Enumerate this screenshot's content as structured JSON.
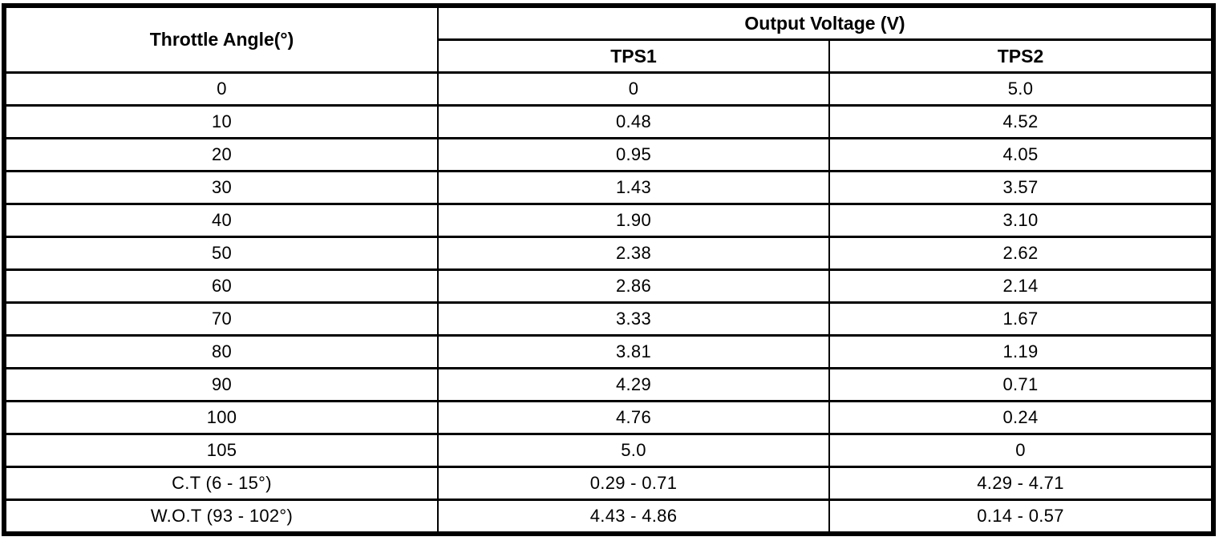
{
  "table": {
    "header": {
      "throttle_angle": "Throttle Angle(°)",
      "output_voltage": "Output Voltage (V)",
      "tps1": "TPS1",
      "tps2": "TPS2"
    },
    "rows": [
      {
        "angle": "0",
        "tps1": "0",
        "tps2": "5.0"
      },
      {
        "angle": "10",
        "tps1": "0.48",
        "tps2": "4.52"
      },
      {
        "angle": "20",
        "tps1": "0.95",
        "tps2": "4.05"
      },
      {
        "angle": "30",
        "tps1": "1.43",
        "tps2": "3.57"
      },
      {
        "angle": "40",
        "tps1": "1.90",
        "tps2": "3.10"
      },
      {
        "angle": "50",
        "tps1": "2.38",
        "tps2": "2.62"
      },
      {
        "angle": "60",
        "tps1": "2.86",
        "tps2": "2.14"
      },
      {
        "angle": "70",
        "tps1": "3.33",
        "tps2": "1.67"
      },
      {
        "angle": "80",
        "tps1": "3.81",
        "tps2": "1.19"
      },
      {
        "angle": "90",
        "tps1": "4.29",
        "tps2": "0.71"
      },
      {
        "angle": "100",
        "tps1": "4.76",
        "tps2": "0.24"
      },
      {
        "angle": "105",
        "tps1": "5.0",
        "tps2": "0"
      },
      {
        "angle": "C.T (6 - 15°)",
        "tps1": "0.29 - 0.71",
        "tps2": "4.29 - 4.71"
      },
      {
        "angle": "W.O.T (93 - 102°)",
        "tps1": "4.43 - 4.86",
        "tps2": "0.14 - 0.57"
      }
    ],
    "colors": {
      "border": "#000000",
      "background": "#ffffff",
      "text": "#000000"
    }
  }
}
